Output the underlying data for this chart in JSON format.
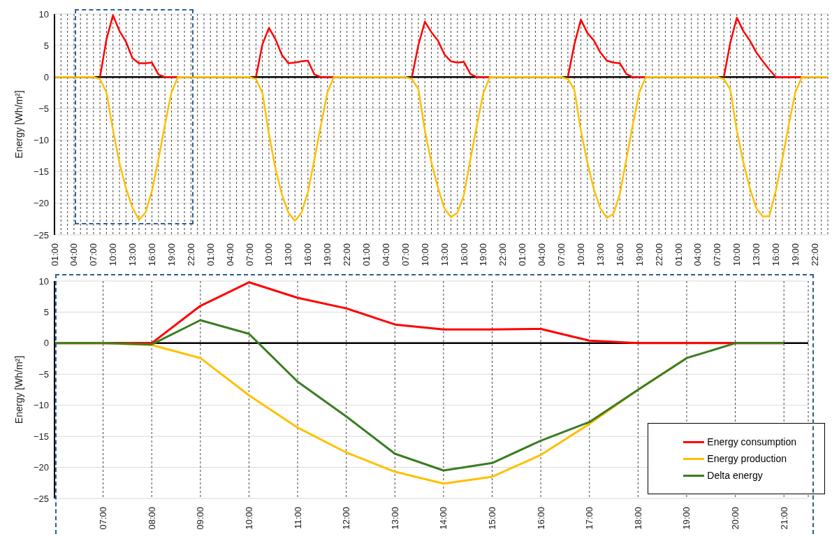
{
  "chart_data": [
    {
      "type": "line",
      "ylabel": "Energy [Wh/m²]",
      "categories": [
        "01:00",
        null,
        null,
        "04:00",
        null,
        null,
        "07:00",
        null,
        null,
        "10:00",
        null,
        null,
        "13:00",
        null,
        null,
        "16:00",
        null,
        null,
        "19:00",
        null,
        null,
        "22:00",
        null,
        null,
        "01:00",
        null,
        null,
        "04:00",
        null,
        null,
        "07:00",
        null,
        null,
        "10:00",
        null,
        null,
        "13:00",
        null,
        null,
        "16:00",
        null,
        null,
        "19:00",
        null,
        null,
        "22:00",
        null,
        null,
        "01:00",
        null,
        null,
        "04:00",
        null,
        null,
        "07:00",
        null,
        null,
        "10:00",
        null,
        null,
        "13:00",
        null,
        null,
        "16:00",
        null,
        null,
        "19:00",
        null,
        null,
        "22:00",
        null,
        null,
        "01:00",
        null,
        null,
        "04:00",
        null,
        null,
        "07:00",
        null,
        null,
        "10:00",
        null,
        null,
        "13:00",
        null,
        null,
        "16:00",
        null,
        null,
        "19:00",
        null,
        null,
        "22:00",
        null,
        null,
        "01:00",
        null,
        null,
        "04:00",
        null,
        null,
        "07:00",
        null,
        null,
        "10:00",
        null,
        null,
        "13:00",
        null,
        null,
        "16:00",
        null,
        null,
        "19:00",
        null,
        null,
        "22:00",
        null,
        null
      ],
      "series": [
        {
          "color": "#ff0000",
          "values": [
            null,
            null,
            null,
            null,
            null,
            null,
            null,
            0,
            6.0,
            9.8,
            7.3,
            5.6,
            3.0,
            2.2,
            2.2,
            2.3,
            0.4,
            0,
            0,
            0,
            null,
            null,
            null,
            null,
            null,
            null,
            null,
            null,
            null,
            null,
            null,
            0,
            5.2,
            7.8,
            6.0,
            3.5,
            2.2,
            2.3,
            2.5,
            2.6,
            0.4,
            0,
            0,
            0,
            null,
            null,
            null,
            null,
            null,
            null,
            null,
            null,
            null,
            null,
            null,
            0,
            5.1,
            8.8,
            7.1,
            5.8,
            3.6,
            2.5,
            2.3,
            2.4,
            0.5,
            0,
            0,
            0,
            null,
            null,
            null,
            null,
            null,
            null,
            null,
            null,
            null,
            null,
            null,
            0,
            5.2,
            9.1,
            7.0,
            5.8,
            3.9,
            2.6,
            2.3,
            2.2,
            0.5,
            0,
            0,
            0,
            null,
            null,
            null,
            null,
            null,
            null,
            null,
            null,
            null,
            null,
            null,
            0,
            5.5,
            9.4,
            7.3,
            5.8,
            3.9,
            2.5,
            1.2,
            0,
            0,
            0,
            0,
            0,
            null,
            null,
            null,
            null
          ]
        },
        {
          "color": "#ffc000",
          "values": [
            0,
            0,
            0,
            0,
            0,
            0,
            0,
            -0.3,
            -2.4,
            -8.4,
            -13.6,
            -17.6,
            -20.7,
            -22.6,
            -21.5,
            -18.0,
            -13.0,
            -7.5,
            -2.4,
            0,
            0,
            0,
            0,
            0,
            0,
            0,
            0,
            0,
            0,
            0,
            0,
            -0.3,
            -2.5,
            -9.0,
            -14.5,
            -18.6,
            -21.5,
            -22.8,
            -21.5,
            -18.2,
            -13.0,
            -7.6,
            -2.4,
            0,
            0,
            0,
            0,
            0,
            0,
            0,
            0,
            0,
            0,
            0,
            0,
            -0.3,
            -1.9,
            -8.5,
            -13.5,
            -17.5,
            -20.8,
            -22.2,
            -21.5,
            -18.7,
            -13.0,
            -7.6,
            -2.5,
            0,
            0,
            0,
            0,
            0,
            0,
            0,
            0,
            0,
            0,
            0,
            0,
            -0.3,
            -2.0,
            -8.5,
            -13.5,
            -17.8,
            -20.8,
            -22.3,
            -21.7,
            -18.5,
            -13.0,
            -7.5,
            -2.4,
            0,
            0,
            0,
            0,
            0,
            0,
            0,
            0,
            0,
            0,
            0,
            0,
            -0.3,
            -2.0,
            -8.5,
            -13.5,
            -17.6,
            -20.8,
            -22.1,
            -22.0,
            -18.0,
            -13.0,
            -7.5,
            -2.4,
            0,
            0,
            0,
            0,
            0
          ]
        }
      ],
      "ylim": [
        -25,
        10
      ],
      "yticks": [
        -25,
        -20,
        -15,
        -10,
        -5,
        0,
        5,
        10
      ],
      "grid": true,
      "ref_lines": [
        {
          "axis": "y",
          "value": 0,
          "color": "#000000"
        }
      ]
    },
    {
      "type": "line",
      "ylabel": "Energy [Wh/m²]",
      "x": [
        6,
        7,
        8,
        9,
        10,
        11,
        12,
        13,
        14,
        15,
        16,
        17,
        18,
        19,
        20,
        21
      ],
      "series": [
        {
          "name": "Energy consumption",
          "color": "#ff0000",
          "values": [
            0,
            0,
            0,
            6.0,
            9.8,
            7.3,
            5.6,
            3.0,
            2.2,
            2.2,
            2.3,
            0.4,
            0,
            0,
            0,
            0
          ]
        },
        {
          "name": "Energy production",
          "color": "#ffc000",
          "values": [
            0,
            0,
            -0.3,
            -2.4,
            -8.4,
            -13.6,
            -17.6,
            -20.7,
            -22.6,
            -21.5,
            -18.0,
            -13.0,
            -7.5,
            -2.4,
            null,
            null
          ]
        },
        {
          "name": "Delta energy",
          "color": "#3a7d22",
          "values": [
            0,
            0,
            -0.2,
            3.7,
            1.5,
            -6.2,
            -11.8,
            -17.8,
            -20.5,
            -19.3,
            -15.7,
            -12.7,
            -7.5,
            -2.4,
            0,
            0
          ]
        }
      ],
      "xlim": [
        6,
        21.5
      ],
      "xticks": [
        {
          "value": 7,
          "label": "07:00"
        },
        {
          "value": 8,
          "label": "08:00"
        },
        {
          "value": 9,
          "label": "09:00"
        },
        {
          "value": 10,
          "label": "10:00"
        },
        {
          "value": 11,
          "label": "11:00"
        },
        {
          "value": 12,
          "label": "12:00"
        },
        {
          "value": 13,
          "label": "13:00"
        },
        {
          "value": 14,
          "label": "14:00"
        },
        {
          "value": 15,
          "label": "15:00"
        },
        {
          "value": 16,
          "label": "16:00"
        },
        {
          "value": 17,
          "label": "17:00"
        },
        {
          "value": 18,
          "label": "18:00"
        },
        {
          "value": 19,
          "label": "19:00"
        },
        {
          "value": 20,
          "label": "20:00"
        },
        {
          "value": 21,
          "label": "21:00"
        }
      ],
      "ylim": [
        -25,
        10
      ],
      "yticks": [
        -25,
        -20,
        -15,
        -10,
        -5,
        0,
        5,
        10
      ],
      "grid": true,
      "legend": "bottom right",
      "ref_lines": [
        {
          "axis": "y",
          "value": 0,
          "color": "#000000"
        }
      ]
    }
  ]
}
